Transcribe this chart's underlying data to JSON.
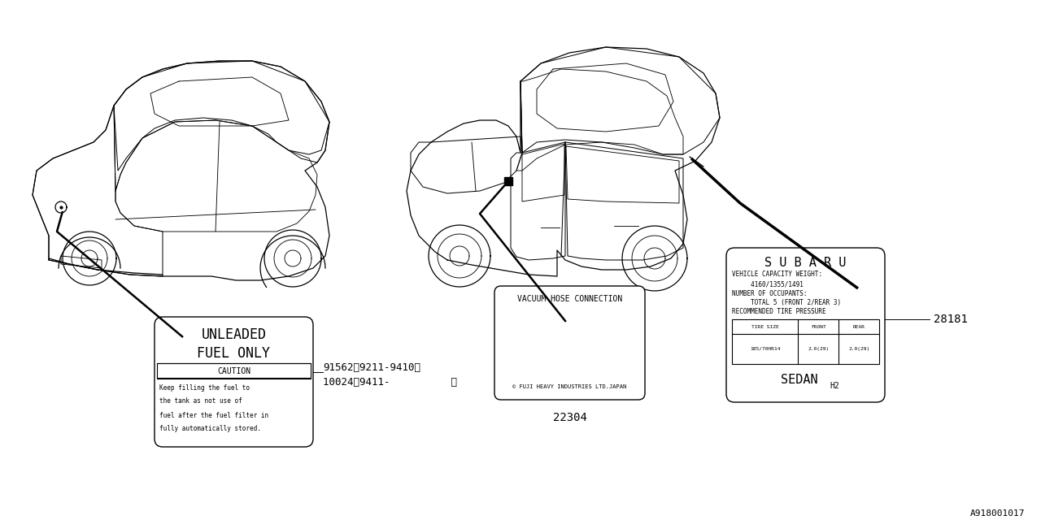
{
  "bg_color": "#ffffff",
  "line_color": "#000000",
  "diagram_code": "A918001017",
  "part_number_28181": "28181",
  "part_number_91562": "91562<9211-9410>",
  "part_number_10024": "10024 <9411-          >",
  "part_number_22304": "22304",
  "label_fuel_title1": "UNLEADED",
  "label_fuel_title2": "FUEL ONLY",
  "label_fuel_section": "CAUTION",
  "label_vacuum_title": "VACUUM HOSE CONNECTION",
  "label_vacuum_footer": "© FUJI HEAVY INDUSTRIES LTD.JAPAN",
  "label_subaru_title": "S U B A R U",
  "label_subaru_line1": "VEHICLE CAPACITY WEIGHT:",
  "label_subaru_line2": "     4160/1355/1491",
  "label_subaru_line3": "NUMBER OF OCCUPANTS:",
  "label_subaru_line4": "     TOTAL 5 (FRONT 2/REAR 3)",
  "label_subaru_line5": "RECOMMENDED TIRE PRESSURE",
  "label_subaru_bottom": "SEDAN",
  "label_subaru_sub": "H2"
}
